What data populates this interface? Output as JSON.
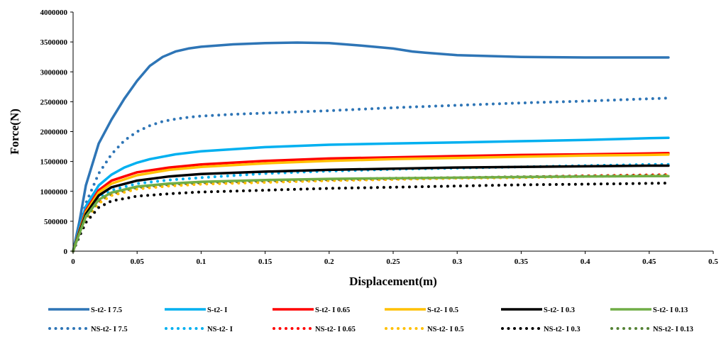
{
  "chart_data": {
    "type": "line",
    "title": "",
    "xlabel": "Displacement(m)",
    "ylabel": "Force(N)",
    "xlim": [
      0,
      0.5
    ],
    "ylim": [
      0,
      4000000
    ],
    "x_ticks": [
      0,
      0.05,
      0.1,
      0.15,
      0.2,
      0.25,
      0.3,
      0.35,
      0.4,
      0.45,
      0.5
    ],
    "x_tick_labels": [
      "0",
      "0.05",
      "0.1",
      "0.15",
      "0.2",
      "0.25",
      "0.3",
      "0.35",
      "0.4",
      "0.45",
      "0.5"
    ],
    "y_ticks": [
      0,
      500000,
      1000000,
      1500000,
      2000000,
      2500000,
      3000000,
      3500000,
      4000000
    ],
    "y_tick_labels": [
      "0",
      "500000",
      "1000000",
      "1500000",
      "2000000",
      "2500000",
      "3000000",
      "3500000",
      "4000000"
    ],
    "grid": false,
    "legend_position": "bottom",
    "series": [
      {
        "name": "S-t2- I  7.5",
        "color": "#2E75B6",
        "style": "solid",
        "x": [
          0,
          0.005,
          0.01,
          0.02,
          0.03,
          0.04,
          0.05,
          0.06,
          0.07,
          0.08,
          0.09,
          0.1,
          0.125,
          0.15,
          0.175,
          0.2,
          0.225,
          0.25,
          0.265,
          0.275,
          0.3,
          0.35,
          0.4,
          0.45,
          0.465
        ],
        "y": [
          0,
          500000,
          1100000,
          1800000,
          2200000,
          2550000,
          2850000,
          3100000,
          3250000,
          3340000,
          3390000,
          3420000,
          3460000,
          3480000,
          3490000,
          3480000,
          3440000,
          3390000,
          3340000,
          3320000,
          3280000,
          3250000,
          3240000,
          3240000,
          3240000
        ]
      },
      {
        "name": "S-t2- I",
        "color": "#00B0F0",
        "style": "solid",
        "x": [
          0,
          0.005,
          0.01,
          0.02,
          0.03,
          0.04,
          0.05,
          0.06,
          0.08,
          0.1,
          0.15,
          0.2,
          0.25,
          0.3,
          0.35,
          0.4,
          0.45,
          0.465
        ],
        "y": [
          0,
          400000,
          750000,
          1100000,
          1280000,
          1400000,
          1480000,
          1540000,
          1620000,
          1670000,
          1740000,
          1780000,
          1800000,
          1820000,
          1840000,
          1860000,
          1890000,
          1895000
        ]
      },
      {
        "name": "S-t2- I 0.65",
        "color": "#FF0000",
        "style": "solid",
        "x": [
          0,
          0.005,
          0.01,
          0.02,
          0.03,
          0.05,
          0.075,
          0.1,
          0.15,
          0.2,
          0.25,
          0.3,
          0.35,
          0.4,
          0.45,
          0.465
        ],
        "y": [
          0,
          350000,
          680000,
          1020000,
          1180000,
          1320000,
          1400000,
          1450000,
          1510000,
          1550000,
          1570000,
          1590000,
          1610000,
          1620000,
          1635000,
          1640000
        ]
      },
      {
        "name": "S-t2- I 0.5",
        "color": "#FFC000",
        "style": "solid",
        "x": [
          0,
          0.005,
          0.01,
          0.02,
          0.03,
          0.05,
          0.075,
          0.1,
          0.15,
          0.2,
          0.25,
          0.3,
          0.35,
          0.4,
          0.45,
          0.465
        ],
        "y": [
          0,
          330000,
          650000,
          980000,
          1130000,
          1270000,
          1360000,
          1410000,
          1470000,
          1510000,
          1540000,
          1560000,
          1580000,
          1600000,
          1610000,
          1615000
        ]
      },
      {
        "name": "S-t2- I 0.3",
        "color": "#000000",
        "style": "solid",
        "x": [
          0,
          0.005,
          0.01,
          0.02,
          0.03,
          0.05,
          0.075,
          0.1,
          0.15,
          0.2,
          0.25,
          0.3,
          0.35,
          0.4,
          0.45,
          0.465
        ],
        "y": [
          0,
          320000,
          620000,
          930000,
          1070000,
          1180000,
          1250000,
          1290000,
          1330000,
          1360000,
          1380000,
          1400000,
          1410000,
          1420000,
          1430000,
          1430000
        ]
      },
      {
        "name": "S-t2- I 0.13",
        "color": "#70AD47",
        "style": "solid",
        "x": [
          0,
          0.005,
          0.01,
          0.02,
          0.03,
          0.05,
          0.075,
          0.1,
          0.15,
          0.2,
          0.25,
          0.3,
          0.35,
          0.4,
          0.45,
          0.465
        ],
        "y": [
          0,
          300000,
          580000,
          860000,
          980000,
          1080000,
          1130000,
          1160000,
          1190000,
          1210000,
          1220000,
          1230000,
          1240000,
          1250000,
          1255000,
          1255000
        ]
      },
      {
        "name": "NS-t2- I 7.5",
        "color": "#2E75B6",
        "style": "dotted",
        "x": [
          0,
          0.005,
          0.01,
          0.02,
          0.03,
          0.04,
          0.05,
          0.06,
          0.07,
          0.08,
          0.09,
          0.1,
          0.125,
          0.15,
          0.2,
          0.25,
          0.3,
          0.35,
          0.4,
          0.45,
          0.465
        ],
        "y": [
          0,
          400000,
          800000,
          1300000,
          1620000,
          1850000,
          2000000,
          2100000,
          2170000,
          2210000,
          2240000,
          2260000,
          2290000,
          2310000,
          2350000,
          2400000,
          2440000,
          2480000,
          2510000,
          2550000,
          2560000
        ]
      },
      {
        "name": "NS-t2- I",
        "color": "#00B0F0",
        "style": "dotted",
        "x": [
          0,
          0.005,
          0.01,
          0.02,
          0.03,
          0.05,
          0.075,
          0.1,
          0.15,
          0.2,
          0.25,
          0.3,
          0.35,
          0.4,
          0.45,
          0.465
        ],
        "y": [
          0,
          300000,
          580000,
          880000,
          1020000,
          1130000,
          1190000,
          1230000,
          1300000,
          1340000,
          1370000,
          1390000,
          1410000,
          1430000,
          1450000,
          1450000
        ]
      },
      {
        "name": "NS-t2- I 0.65",
        "color": "#FF0000",
        "style": "dotted",
        "x": [
          0,
          0.005,
          0.01,
          0.02,
          0.03,
          0.05,
          0.075,
          0.1,
          0.15,
          0.2,
          0.25,
          0.3,
          0.35,
          0.4,
          0.45,
          0.465
        ],
        "y": [
          0,
          280000,
          550000,
          820000,
          950000,
          1060000,
          1110000,
          1140000,
          1170000,
          1190000,
          1210000,
          1230000,
          1240000,
          1260000,
          1275000,
          1280000
        ]
      },
      {
        "name": "NS-t2- I 0.5",
        "color": "#FFC000",
        "style": "dotted",
        "x": [
          0,
          0.005,
          0.01,
          0.02,
          0.03,
          0.05,
          0.075,
          0.1,
          0.15,
          0.2,
          0.25,
          0.3,
          0.35,
          0.4,
          0.45,
          0.465
        ],
        "y": [
          0,
          270000,
          530000,
          800000,
          930000,
          1040000,
          1090000,
          1120000,
          1150000,
          1180000,
          1200000,
          1220000,
          1230000,
          1250000,
          1260000,
          1265000
        ]
      },
      {
        "name": "NS-t2- I 0.3",
        "color": "#000000",
        "style": "dotted",
        "x": [
          0,
          0.005,
          0.01,
          0.02,
          0.03,
          0.05,
          0.075,
          0.1,
          0.15,
          0.2,
          0.25,
          0.3,
          0.35,
          0.4,
          0.45,
          0.465
        ],
        "y": [
          0,
          250000,
          480000,
          730000,
          840000,
          920000,
          960000,
          990000,
          1020000,
          1050000,
          1070000,
          1090000,
          1110000,
          1120000,
          1135000,
          1140000
        ]
      },
      {
        "name": "NS-t2- I 0.13",
        "color": "#548235",
        "style": "dotted",
        "x": [
          0,
          0.005,
          0.01,
          0.02,
          0.03,
          0.05,
          0.075,
          0.1,
          0.15,
          0.2,
          0.25,
          0.3,
          0.35,
          0.4,
          0.45,
          0.465
        ],
        "y": [
          0,
          290000,
          560000,
          850000,
          970000,
          1070000,
          1120000,
          1150000,
          1180000,
          1200000,
          1220000,
          1230000,
          1245000,
          1255000,
          1265000,
          1270000
        ]
      }
    ]
  }
}
